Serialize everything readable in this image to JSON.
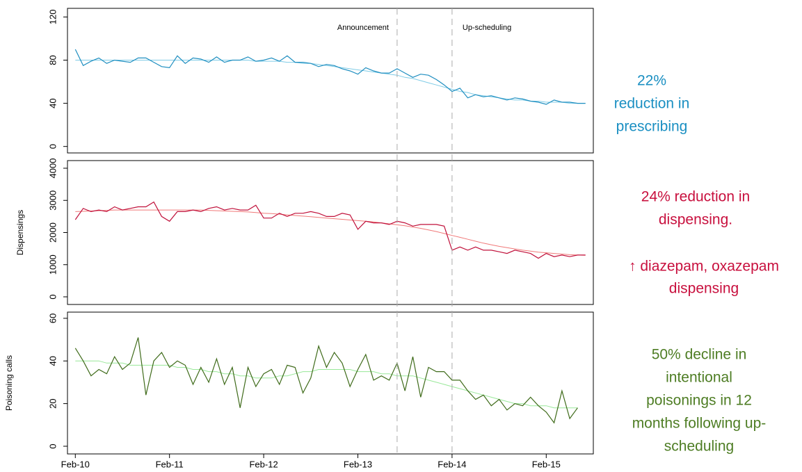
{
  "chart_data": [
    {
      "type": "line",
      "x": [
        "2010-02",
        "2010-03",
        "2010-04",
        "2010-05",
        "2010-06",
        "2010-07",
        "2010-08",
        "2010-09",
        "2010-10",
        "2010-11",
        "2010-12",
        "2011-01",
        "2011-02",
        "2011-03",
        "2011-04",
        "2011-05",
        "2011-06",
        "2011-07",
        "2011-08",
        "2011-09",
        "2011-10",
        "2011-11",
        "2011-12",
        "2012-01",
        "2012-02",
        "2012-03",
        "2012-04",
        "2012-05",
        "2012-06",
        "2012-07",
        "2012-08",
        "2012-09",
        "2012-10",
        "2012-11",
        "2012-12",
        "2013-01",
        "2013-02",
        "2013-03",
        "2013-04",
        "2013-05",
        "2013-06",
        "2013-07",
        "2013-08",
        "2013-09",
        "2013-10",
        "2013-11",
        "2013-12",
        "2014-01",
        "2014-02",
        "2014-03",
        "2014-04",
        "2014-05",
        "2014-06",
        "2014-07",
        "2014-08",
        "2014-09",
        "2014-10",
        "2014-11",
        "2014-12",
        "2015-01",
        "2015-02",
        "2015-03",
        "2015-04",
        "2015-05",
        "2015-06",
        "2015-07"
      ],
      "xlim": [
        "2010-01",
        "2015-08"
      ],
      "ylim": [
        -6,
        128
      ],
      "yticks": [
        0,
        40,
        80,
        120
      ],
      "series": [
        {
          "color": "#7fcbe6",
          "values": [
            80,
            80,
            80,
            80,
            80,
            80,
            80,
            80,
            80,
            80,
            80,
            80,
            80,
            80,
            80,
            80,
            80,
            80,
            80,
            80,
            80,
            80,
            80,
            79,
            79,
            79,
            79,
            78,
            78,
            77,
            77,
            76,
            75,
            74,
            73,
            72,
            71,
            70,
            69,
            68,
            67,
            66,
            64,
            63,
            61,
            59,
            57,
            55,
            53,
            51,
            50,
            48,
            47,
            46,
            45,
            44,
            43,
            43,
            42,
            42,
            41,
            41,
            41,
            40,
            40,
            40
          ]
        },
        {
          "color": "#1e8ec0",
          "values": [
            90,
            75,
            79,
            82,
            77,
            80,
            79,
            78,
            82,
            82,
            78,
            74,
            73,
            84,
            77,
            82,
            81,
            78,
            83,
            78,
            80,
            80,
            83,
            79,
            80,
            82,
            79,
            84,
            78,
            78,
            77,
            74,
            76,
            75,
            72,
            70,
            67,
            73,
            70,
            68,
            68,
            72,
            68,
            64,
            67,
            66,
            62,
            57,
            51,
            54,
            45,
            48,
            46,
            47,
            45,
            43,
            45,
            44,
            42,
            41,
            39,
            43,
            41,
            41,
            40,
            40
          ]
        }
      ]
    },
    {
      "type": "line",
      "x": [
        "2010-02",
        "2010-03",
        "2010-04",
        "2010-05",
        "2010-06",
        "2010-07",
        "2010-08",
        "2010-09",
        "2010-10",
        "2010-11",
        "2010-12",
        "2011-01",
        "2011-02",
        "2011-03",
        "2011-04",
        "2011-05",
        "2011-06",
        "2011-07",
        "2011-08",
        "2011-09",
        "2011-10",
        "2011-11",
        "2011-12",
        "2012-01",
        "2012-02",
        "2012-03",
        "2012-04",
        "2012-05",
        "2012-06",
        "2012-07",
        "2012-08",
        "2012-09",
        "2012-10",
        "2012-11",
        "2012-12",
        "2013-01",
        "2013-02",
        "2013-03",
        "2013-04",
        "2013-05",
        "2013-06",
        "2013-07",
        "2013-08",
        "2013-09",
        "2013-10",
        "2013-11",
        "2013-12",
        "2014-01",
        "2014-02",
        "2014-03",
        "2014-04",
        "2014-05",
        "2014-06",
        "2014-07",
        "2014-08",
        "2014-09",
        "2014-10",
        "2014-11",
        "2014-12",
        "2015-01",
        "2015-02",
        "2015-03",
        "2015-04",
        "2015-05",
        "2015-06",
        "2015-07"
      ],
      "xlim": [
        "2010-01",
        "2015-08"
      ],
      "ylabel": "Dispensings",
      "ylim": [
        -238,
        4238
      ],
      "yticks": [
        0,
        1000,
        2000,
        3000,
        4000
      ],
      "series": [
        {
          "color": "#f07878",
          "values": [
            2650,
            2660,
            2670,
            2680,
            2690,
            2700,
            2700,
            2700,
            2700,
            2700,
            2700,
            2700,
            2700,
            2700,
            2700,
            2700,
            2700,
            2690,
            2680,
            2670,
            2660,
            2650,
            2640,
            2620,
            2600,
            2590,
            2570,
            2550,
            2530,
            2510,
            2490,
            2470,
            2450,
            2430,
            2410,
            2390,
            2370,
            2350,
            2330,
            2300,
            2270,
            2240,
            2210,
            2170,
            2130,
            2080,
            2030,
            1970,
            1910,
            1850,
            1790,
            1730,
            1670,
            1620,
            1570,
            1530,
            1490,
            1450,
            1420,
            1390,
            1370,
            1350,
            1330,
            1310,
            1300,
            1290
          ]
        },
        {
          "color": "#c0103a",
          "values": [
            2400,
            2750,
            2650,
            2700,
            2650,
            2800,
            2700,
            2750,
            2800,
            2800,
            2950,
            2500,
            2350,
            2650,
            2650,
            2700,
            2650,
            2750,
            2800,
            2700,
            2750,
            2700,
            2700,
            2850,
            2450,
            2450,
            2600,
            2500,
            2600,
            2600,
            2650,
            2600,
            2500,
            2500,
            2600,
            2550,
            2100,
            2350,
            2300,
            2300,
            2250,
            2350,
            2300,
            2200,
            2250,
            2250,
            2250,
            2200,
            1450,
            1550,
            1450,
            1550,
            1450,
            1450,
            1400,
            1350,
            1450,
            1400,
            1350,
            1200,
            1350,
            1250,
            1300,
            1250,
            1300,
            1300
          ]
        }
      ]
    },
    {
      "type": "line",
      "x": [
        "2010-02",
        "2010-03",
        "2010-04",
        "2010-05",
        "2010-06",
        "2010-07",
        "2010-08",
        "2010-09",
        "2010-10",
        "2010-11",
        "2010-12",
        "2011-01",
        "2011-02",
        "2011-03",
        "2011-04",
        "2011-05",
        "2011-06",
        "2011-07",
        "2011-08",
        "2011-09",
        "2011-10",
        "2011-11",
        "2011-12",
        "2012-01",
        "2012-02",
        "2012-03",
        "2012-04",
        "2012-05",
        "2012-06",
        "2012-07",
        "2012-08",
        "2012-09",
        "2012-10",
        "2012-11",
        "2012-12",
        "2013-01",
        "2013-02",
        "2013-03",
        "2013-04",
        "2013-05",
        "2013-06",
        "2013-07",
        "2013-08",
        "2013-09",
        "2013-10",
        "2013-11",
        "2013-12",
        "2014-01",
        "2014-02",
        "2014-03",
        "2014-04",
        "2014-05",
        "2014-06",
        "2014-07",
        "2014-08",
        "2014-09",
        "2014-10",
        "2014-11",
        "2014-12",
        "2015-01",
        "2015-02",
        "2015-03",
        "2015-04",
        "2015-05",
        "2015-06",
        "2015-07"
      ],
      "xlim": [
        "2010-01",
        "2015-08"
      ],
      "xticks": [
        {
          "value": "2010-02",
          "label": "Feb-10"
        },
        {
          "value": "2011-02",
          "label": "Feb-11"
        },
        {
          "value": "2012-02",
          "label": "Feb-12"
        },
        {
          "value": "2013-02",
          "label": "Feb-13"
        },
        {
          "value": "2014-02",
          "label": "Feb-14"
        },
        {
          "value": "2015-02",
          "label": "Feb-15"
        }
      ],
      "ylabel": "Poisoning calls",
      "ylim": [
        -3.6,
        62.9
      ],
      "yticks": [
        0,
        20,
        40,
        60
      ],
      "series": [
        {
          "color": "#98e898",
          "values": [
            40,
            40,
            40,
            40,
            39,
            39,
            39,
            38,
            38,
            38,
            38,
            38,
            38,
            37,
            37,
            36,
            36,
            35,
            35,
            34,
            34,
            33,
            33,
            32,
            32,
            32,
            33,
            33,
            34,
            35,
            35,
            36,
            36,
            36,
            36,
            36,
            35,
            35,
            35,
            34,
            34,
            33,
            33,
            33,
            32,
            31,
            30,
            29,
            28,
            27,
            26,
            25,
            24,
            23,
            22,
            21,
            20,
            20,
            19,
            19,
            19,
            18,
            18,
            18,
            18,
            null
          ]
        },
        {
          "color": "#3f6b1a",
          "values": [
            46,
            40,
            33,
            36,
            34,
            42,
            36,
            39,
            51,
            24,
            40,
            44,
            37,
            40,
            38,
            29,
            37,
            30,
            41,
            29,
            37,
            18,
            37,
            28,
            34,
            36,
            29,
            38,
            37,
            25,
            32,
            47,
            37,
            44,
            39,
            28,
            36,
            43,
            31,
            33,
            31,
            39,
            26,
            42,
            23,
            37,
            35,
            35,
            31,
            31,
            26,
            22,
            24,
            19,
            22,
            17,
            20,
            19,
            23,
            19,
            16,
            11,
            26,
            13,
            18,
            null
          ]
        }
      ]
    }
  ],
  "events": [
    {
      "label": "Announcement",
      "x": "2013-07"
    },
    {
      "label": "Up-scheduling",
      "x": "2014-02"
    }
  ],
  "notes": [
    {
      "color": "#1a8fc2",
      "lines": [
        "22%",
        "reduction in",
        "prescribing"
      ]
    },
    {
      "color": "#c8103e",
      "lines": [
        "24% reduction in",
        "dispensing."
      ]
    },
    {
      "color": "#c8103e",
      "lines": [
        "↑ diazepam, oxazepam",
        "dispensing"
      ]
    },
    {
      "color": "#4e7d24",
      "lines": [
        "50% decline in",
        "intentional",
        "poisonings in 12",
        "months following up-",
        "scheduling"
      ]
    }
  ]
}
